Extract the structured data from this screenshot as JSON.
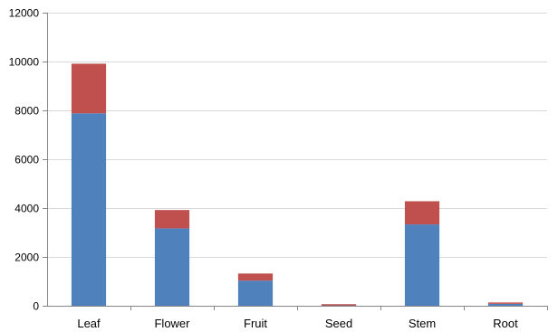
{
  "chart_data": {
    "type": "bar",
    "stacked": true,
    "title": "",
    "xlabel": "",
    "ylabel": "",
    "categories": [
      "Leaf",
      "Flower",
      "Fruit",
      "Seed",
      "Stem",
      "Root"
    ],
    "series": [
      {
        "values": [
          7880,
          3170,
          1030,
          10,
          3330,
          80
        ],
        "color": "#4f81bd"
      },
      {
        "values": [
          2030,
          750,
          290,
          10,
          950,
          50
        ],
        "color": "#c0504d"
      }
    ],
    "ylim": [
      0,
      12000
    ],
    "yticks": [
      "0",
      "2000",
      "4000",
      "6000",
      "8000",
      "10000",
      "12000"
    ],
    "grid": true,
    "legend": "none"
  }
}
